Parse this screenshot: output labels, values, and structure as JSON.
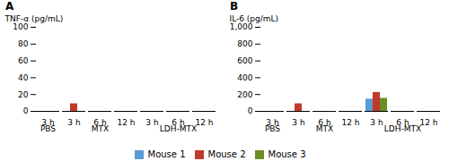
{
  "chart_data": [
    {
      "type": "bar",
      "title": "A",
      "ylabel": "TNF-α (pg/mL)",
      "categories": [
        {
          "group": "PBS",
          "label": "3 h"
        },
        {
          "group": "MTX",
          "label": "3 h"
        },
        {
          "group": "MTX",
          "label": "6 h"
        },
        {
          "group": "MTX",
          "label": "12 h"
        },
        {
          "group": "LDH-MTX",
          "label": "3 h"
        },
        {
          "group": "LDH-MTX",
          "label": "6 h"
        },
        {
          "group": "LDH-MTX",
          "label": "12 h"
        }
      ],
      "series": [
        {
          "name": "Mouse 1",
          "color": "#5B9BD5",
          "values": [
            0,
            0,
            0,
            0,
            0,
            0,
            0
          ]
        },
        {
          "name": "Mouse 2",
          "color": "#C0392B",
          "values": [
            0,
            9,
            0,
            0,
            0,
            0,
            0
          ]
        },
        {
          "name": "Mouse 3",
          "color": "#6B8E23",
          "values": [
            0,
            0,
            0,
            0,
            0,
            0,
            0
          ]
        }
      ],
      "ylim": [
        0,
        100
      ],
      "yticks": [
        0,
        20,
        40,
        60,
        80,
        100
      ],
      "legend": "bottom"
    },
    {
      "type": "bar",
      "title": "B",
      "ylabel": "IL-6 (pg/mL)",
      "categories": [
        {
          "group": "PBS",
          "label": "3 h"
        },
        {
          "group": "MTX",
          "label": "3 h"
        },
        {
          "group": "MTX",
          "label": "6 h"
        },
        {
          "group": "MTX",
          "label": "12 h"
        },
        {
          "group": "LDH-MTX",
          "label": "3 h"
        },
        {
          "group": "LDH-MTX",
          "label": "6 h"
        },
        {
          "group": "LDH-MTX",
          "label": "12 h"
        }
      ],
      "series": [
        {
          "name": "Mouse 1",
          "color": "#5B9BD5",
          "values": [
            0,
            0,
            0,
            0,
            145,
            0,
            0
          ]
        },
        {
          "name": "Mouse 2",
          "color": "#C0392B",
          "values": [
            0,
            90,
            0,
            0,
            225,
            0,
            0
          ]
        },
        {
          "name": "Mouse 3",
          "color": "#6B8E23",
          "values": [
            0,
            0,
            0,
            0,
            155,
            0,
            0
          ]
        }
      ],
      "ylim": [
        0,
        1000
      ],
      "yticks": [
        0,
        200,
        400,
        600,
        800,
        {
          "value": 1000,
          "label": "1,000"
        }
      ],
      "legend": "bottom"
    }
  ]
}
